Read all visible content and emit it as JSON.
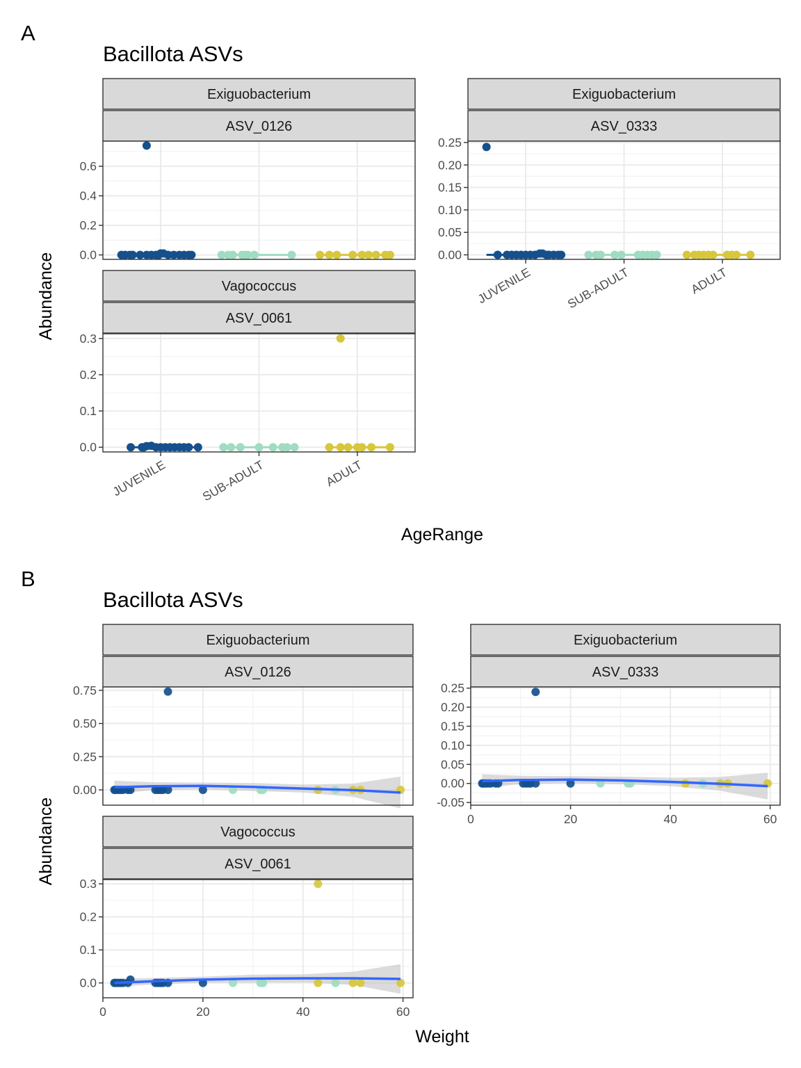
{
  "panel_tags": [
    "A",
    "B"
  ],
  "colors": {
    "JUVENILE": "#15508c",
    "SUB-ADULT": "#9fdcc1",
    "ADULT": "#d7c73c",
    "smooth": "#3366ff",
    "ribbon": "#bdbdbd",
    "strip_bg": "#d9d9d9"
  },
  "chart_data": [
    {
      "type": "scatter",
      "title": "Bacillota ASVs",
      "xlabel": "AgeRange",
      "ylabel": "Abundance",
      "categories": [
        "JUVENILE",
        "SUB-ADULT",
        "ADULT"
      ],
      "facets": [
        {
          "genus": "Exiguobacterium",
          "asv": "ASV_0126",
          "ylim": [
            -0.03,
            0.77
          ],
          "yticks": [
            0.0,
            0.2,
            0.4,
            0.6
          ],
          "ytick_labels": [
            "0.0",
            "0.2",
            "0.4",
            "0.6"
          ],
          "show_x_labels": false,
          "points": {
            "JUVENILE": [
              [
                -0.42,
                0
              ],
              [
                -0.38,
                0
              ],
              [
                -0.33,
                0
              ],
              [
                -0.3,
                0
              ],
              [
                -0.22,
                0
              ],
              [
                -0.15,
                0
              ],
              [
                -0.1,
                0
              ],
              [
                -0.05,
                0
              ],
              [
                -0.02,
                0
              ],
              [
                0.0,
                0.01
              ],
              [
                0.03,
                0.01
              ],
              [
                -0.15,
                0.74
              ],
              [
                0.08,
                0
              ],
              [
                0.14,
                0
              ],
              [
                0.2,
                0
              ],
              [
                0.25,
                0
              ],
              [
                0.3,
                0
              ],
              [
                0.33,
                0
              ]
            ],
            "SUB-ADULT": [
              [
                -0.4,
                0
              ],
              [
                -0.33,
                0
              ],
              [
                -0.28,
                0
              ],
              [
                -0.18,
                0
              ],
              [
                -0.15,
                0
              ],
              [
                -0.12,
                0
              ],
              [
                -0.05,
                0
              ],
              [
                0.35,
                0
              ]
            ],
            "ADULT": [
              [
                -0.4,
                0
              ],
              [
                -0.3,
                0
              ],
              [
                -0.22,
                0
              ],
              [
                -0.05,
                0
              ],
              [
                0.05,
                0
              ],
              [
                0.12,
                0
              ],
              [
                0.2,
                0
              ],
              [
                0.3,
                0
              ],
              [
                0.35,
                0
              ]
            ]
          }
        },
        {
          "genus": "Exiguobacterium",
          "asv": "ASV_0333",
          "ylim": [
            -0.01,
            0.253
          ],
          "yticks": [
            0.0,
            0.05,
            0.1,
            0.15,
            0.2,
            0.25
          ],
          "ytick_labels": [
            "0.00",
            "0.05",
            "0.10",
            "0.15",
            "0.20",
            "0.25"
          ],
          "show_x_labels": true,
          "points": {
            "JUVENILE": [
              [
                -0.42,
                0.24
              ],
              [
                -0.3,
                0
              ],
              [
                -0.2,
                0
              ],
              [
                -0.15,
                0
              ],
              [
                -0.1,
                0
              ],
              [
                -0.05,
                0
              ],
              [
                0.0,
                0
              ],
              [
                0.05,
                0
              ],
              [
                0.1,
                0
              ],
              [
                0.15,
                0.003
              ],
              [
                0.18,
                0.003
              ],
              [
                0.22,
                0
              ],
              [
                0.25,
                0
              ],
              [
                0.3,
                0
              ],
              [
                0.35,
                0
              ],
              [
                0.38,
                0
              ]
            ],
            "SUB-ADULT": [
              [
                -0.38,
                0
              ],
              [
                -0.3,
                0
              ],
              [
                -0.25,
                0
              ],
              [
                -0.1,
                0
              ],
              [
                -0.03,
                0
              ],
              [
                0.15,
                0
              ],
              [
                0.2,
                0
              ],
              [
                0.25,
                0
              ],
              [
                0.3,
                0
              ],
              [
                0.35,
                0
              ]
            ],
            "ADULT": [
              [
                -0.38,
                0
              ],
              [
                -0.3,
                0
              ],
              [
                -0.25,
                0
              ],
              [
                -0.2,
                0
              ],
              [
                -0.15,
                0
              ],
              [
                -0.1,
                0
              ],
              [
                0.05,
                0
              ],
              [
                0.1,
                0
              ],
              [
                0.15,
                0
              ],
              [
                0.3,
                0
              ]
            ]
          }
        },
        {
          "genus": "Vagococcus",
          "asv": "ASV_0061",
          "ylim": [
            -0.013,
            0.313
          ],
          "yticks": [
            0.0,
            0.1,
            0.2,
            0.3
          ],
          "ytick_labels": [
            "0.0",
            "0.1",
            "0.2",
            "0.3"
          ],
          "show_x_labels": true,
          "points": {
            "JUVENILE": [
              [
                -0.32,
                0
              ],
              [
                -0.2,
                0
              ],
              [
                -0.1,
                0.004
              ],
              [
                -0.18,
                0
              ],
              [
                -0.15,
                0.003
              ],
              [
                -0.05,
                0
              ],
              [
                0.0,
                0
              ],
              [
                0.05,
                0
              ],
              [
                0.1,
                0
              ],
              [
                0.15,
                0
              ],
              [
                0.2,
                0
              ],
              [
                0.25,
                0
              ],
              [
                0.3,
                0
              ],
              [
                0.4,
                0
              ]
            ],
            "SUB-ADULT": [
              [
                -0.38,
                0
              ],
              [
                -0.3,
                0
              ],
              [
                -0.2,
                0
              ],
              [
                0.0,
                0
              ],
              [
                0.15,
                0
              ],
              [
                0.25,
                0
              ],
              [
                0.3,
                0
              ],
              [
                0.38,
                0
              ]
            ],
            "ADULT": [
              [
                -0.3,
                0
              ],
              [
                -0.18,
                0
              ],
              [
                -0.1,
                0
              ],
              [
                0.0,
                0
              ],
              [
                0.05,
                0
              ],
              [
                0.15,
                0
              ],
              [
                0.35,
                0
              ],
              [
                -0.18,
                0.3
              ]
            ]
          }
        }
      ]
    },
    {
      "type": "scatter",
      "title": "Bacillota ASVs",
      "xlabel": "Weight",
      "ylabel": "Abundance",
      "xlim": [
        0,
        62
      ],
      "xticks": [
        0,
        20,
        40,
        60
      ],
      "xtick_labels": [
        "0",
        "20",
        "40",
        "60"
      ],
      "facets": [
        {
          "genus": "Exiguobacterium",
          "asv": "ASV_0126",
          "ylim": [
            -0.115,
            0.775
          ],
          "yticks": [
            0.0,
            0.25,
            0.5,
            0.75
          ],
          "ytick_labels": [
            "0.00",
            "0.25",
            "0.50",
            "0.75"
          ],
          "show_x_labels": false,
          "points": {
            "JUVENILE": [
              [
                2.3,
                0
              ],
              [
                2.5,
                0
              ],
              [
                3,
                0
              ],
              [
                3.5,
                0
              ],
              [
                4,
                0
              ],
              [
                5,
                0
              ],
              [
                5.5,
                0
              ],
              [
                10.5,
                0
              ],
              [
                11,
                0
              ],
              [
                11.5,
                0
              ],
              [
                12,
                0
              ],
              [
                13,
                0
              ],
              [
                13,
                0.74
              ],
              [
                20,
                0
              ]
            ],
            "SUB-ADULT": [
              [
                26,
                0
              ],
              [
                31.5,
                0
              ],
              [
                32,
                0
              ],
              [
                46.5,
                0
              ]
            ],
            "ADULT": [
              [
                43,
                0
              ],
              [
                50,
                0
              ],
              [
                51.5,
                0
              ],
              [
                59.5,
                0
              ]
            ]
          },
          "smooth": [
            [
              2.3,
              0.02
            ],
            [
              10,
              0.028
            ],
            [
              20,
              0.03
            ],
            [
              30,
              0.022
            ],
            [
              40,
              0.01
            ],
            [
              50,
              -0.002
            ],
            [
              59.5,
              -0.02
            ]
          ],
          "ribbon_half_width": [
            [
              2.3,
              0.05
            ],
            [
              10,
              0.03
            ],
            [
              20,
              0.025
            ],
            [
              30,
              0.03
            ],
            [
              40,
              0.03
            ],
            [
              50,
              0.05
            ],
            [
              59.5,
              0.12
            ]
          ]
        },
        {
          "genus": "Exiguobacterium",
          "asv": "ASV_0333",
          "ylim": [
            -0.057,
            0.253
          ],
          "yticks": [
            -0.05,
            0.0,
            0.05,
            0.1,
            0.15,
            0.2,
            0.25
          ],
          "ytick_labels": [
            "-0.05",
            "0.00",
            "0.05",
            "0.10",
            "0.15",
            "0.20",
            "0.25"
          ],
          "show_x_labels": true,
          "points": {
            "JUVENILE": [
              [
                2.3,
                0
              ],
              [
                2.5,
                0
              ],
              [
                3,
                0
              ],
              [
                3.5,
                0
              ],
              [
                4,
                0
              ],
              [
                5,
                0
              ],
              [
                5.5,
                0
              ],
              [
                10.5,
                0
              ],
              [
                11,
                0
              ],
              [
                11.5,
                0
              ],
              [
                12,
                0
              ],
              [
                13,
                0
              ],
              [
                13,
                0.24
              ],
              [
                20,
                0
              ]
            ],
            "SUB-ADULT": [
              [
                26,
                0
              ],
              [
                31.5,
                0
              ],
              [
                32,
                0
              ],
              [
                46.5,
                0
              ]
            ],
            "ADULT": [
              [
                43,
                0
              ],
              [
                50,
                0
              ],
              [
                51.5,
                0
              ],
              [
                59.5,
                0
              ]
            ]
          },
          "smooth": [
            [
              2.3,
              0.006
            ],
            [
              10,
              0.009
            ],
            [
              20,
              0.01
            ],
            [
              30,
              0.008
            ],
            [
              40,
              0.004
            ],
            [
              50,
              -0.001
            ],
            [
              59.5,
              -0.007
            ]
          ],
          "ribbon_half_width": [
            [
              2.3,
              0.018
            ],
            [
              10,
              0.011
            ],
            [
              20,
              0.009
            ],
            [
              30,
              0.01
            ],
            [
              40,
              0.011
            ],
            [
              50,
              0.018
            ],
            [
              59.5,
              0.035
            ]
          ]
        },
        {
          "genus": "Vagococcus",
          "asv": "ASV_0061",
          "ylim": [
            -0.045,
            0.313
          ],
          "yticks": [
            0.0,
            0.1,
            0.2,
            0.3
          ],
          "ytick_labels": [
            "0.0",
            "0.1",
            "0.2",
            "0.3"
          ],
          "show_x_labels": true,
          "points": {
            "JUVENILE": [
              [
                2.3,
                0
              ],
              [
                2.5,
                0
              ],
              [
                3,
                0
              ],
              [
                3.5,
                0
              ],
              [
                4,
                0
              ],
              [
                5,
                0
              ],
              [
                5.5,
                0.01
              ],
              [
                10.5,
                0
              ],
              [
                11,
                0
              ],
              [
                11.5,
                0
              ],
              [
                12,
                0
              ],
              [
                13,
                0
              ],
              [
                20,
                0
              ]
            ],
            "SUB-ADULT": [
              [
                26,
                0
              ],
              [
                31.5,
                0
              ],
              [
                32,
                0
              ],
              [
                46.5,
                0
              ]
            ],
            "ADULT": [
              [
                43,
                0
              ],
              [
                43,
                0.3
              ],
              [
                50,
                0
              ],
              [
                51.5,
                0
              ],
              [
                59.5,
                0
              ]
            ]
          },
          "smooth": [
            [
              2.3,
              0.0
            ],
            [
              10,
              0.005
            ],
            [
              20,
              0.01
            ],
            [
              30,
              0.013
            ],
            [
              40,
              0.014
            ],
            [
              50,
              0.014
            ],
            [
              59.5,
              0.012
            ]
          ],
          "ribbon_half_width": [
            [
              2.3,
              0.012
            ],
            [
              10,
              0.01
            ],
            [
              20,
              0.009
            ],
            [
              30,
              0.012
            ],
            [
              40,
              0.012
            ],
            [
              50,
              0.02
            ],
            [
              59.5,
              0.045
            ]
          ]
        }
      ]
    }
  ]
}
